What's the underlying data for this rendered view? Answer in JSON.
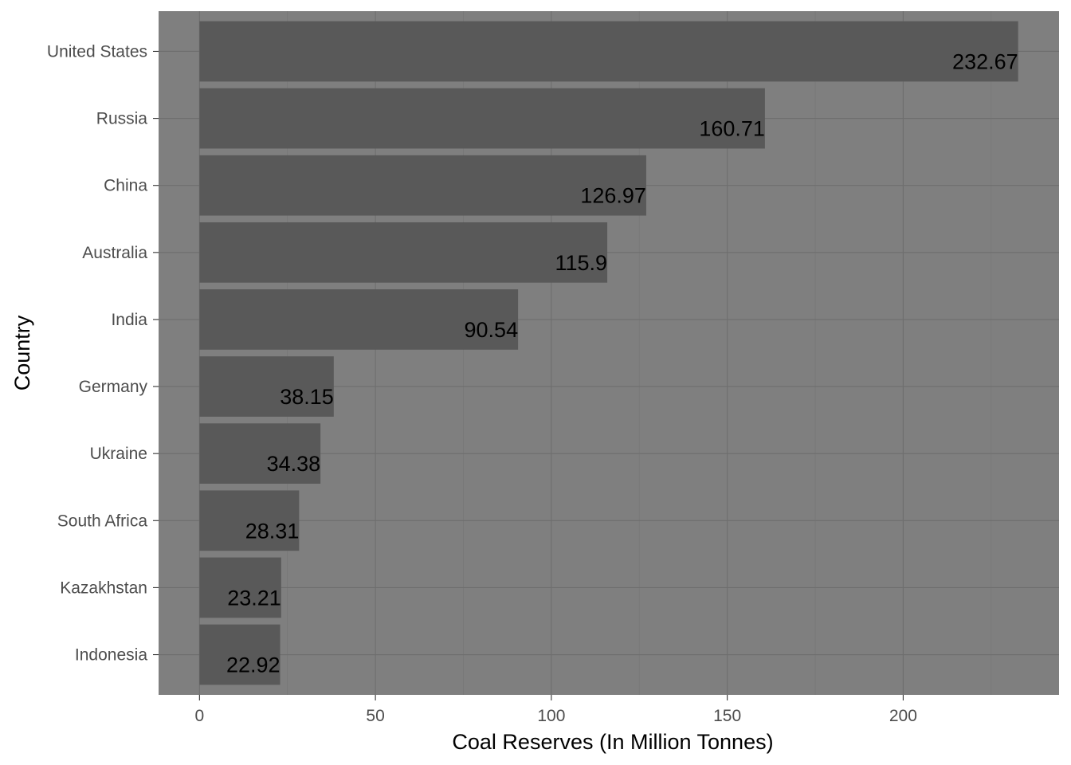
{
  "chart_data": {
    "type": "bar",
    "orientation": "horizontal",
    "categories": [
      "United States",
      "Russia",
      "China",
      "Australia",
      "India",
      "Germany",
      "Ukraine",
      "South Africa",
      "Kazakhstan",
      "Indonesia"
    ],
    "values": [
      232.67,
      160.71,
      126.97,
      115.9,
      90.54,
      38.15,
      34.38,
      28.31,
      23.21,
      22.92
    ],
    "value_labels": [
      "232.67",
      "160.71",
      "126.97",
      "115.9",
      "90.54",
      "38.15",
      "34.38",
      "28.31",
      "23.21",
      "22.92"
    ],
    "xlabel": "Coal Reserves (In Million Tonnes)",
    "ylabel": "Country",
    "xlim": [
      -11.63,
      244.3
    ],
    "xticks": [
      0,
      50,
      100,
      150,
      200
    ],
    "xtick_labels": [
      "0",
      "50",
      "100",
      "150",
      "200"
    ],
    "grid": true,
    "legend": "none",
    "colors": {
      "panel": "#7f7f7f",
      "bar": "#595959",
      "grid_major": "#6e6e6e",
      "grid_minor": "#777777",
      "tick_text": "#4d4d4d",
      "label_text": "#000000"
    }
  }
}
